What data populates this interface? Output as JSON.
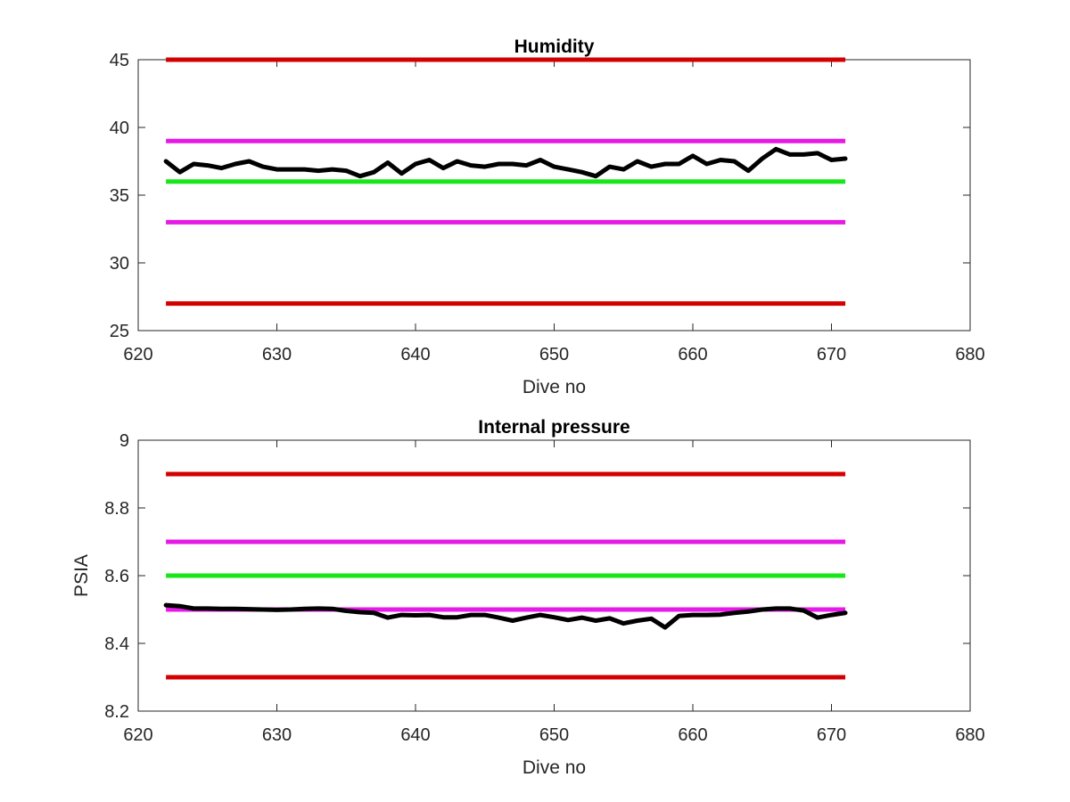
{
  "chart_data": [
    {
      "type": "line",
      "title": "Humidity",
      "xlabel": "Dive no",
      "ylabel": "",
      "xlim": [
        620,
        680
      ],
      "ylim": [
        25,
        45
      ],
      "xticks": [
        620,
        630,
        640,
        650,
        660,
        670,
        680
      ],
      "yticks": [
        25,
        30,
        35,
        40,
        45
      ],
      "x_tick_labels": [
        "620",
        "630",
        "640",
        "650",
        "660",
        "670",
        "680"
      ],
      "y_tick_labels": [
        "25",
        "30",
        "35",
        "40",
        "45"
      ],
      "grid": false,
      "reference_lines": [
        {
          "y": 45,
          "x_range": [
            622,
            671
          ],
          "color": "#d40000"
        },
        {
          "y": 39,
          "x_range": [
            622,
            671
          ],
          "color": "#e619e6"
        },
        {
          "y": 36,
          "x_range": [
            622,
            671
          ],
          "color": "#19e619"
        },
        {
          "y": 33,
          "x_range": [
            622,
            671
          ],
          "color": "#e619e6"
        },
        {
          "y": 27,
          "x_range": [
            622,
            671
          ],
          "color": "#d40000"
        }
      ],
      "series": [
        {
          "color": "#000000",
          "x": [
            622,
            623,
            624,
            625,
            626,
            627,
            628,
            629,
            630,
            631,
            632,
            633,
            634,
            635,
            636,
            637,
            638,
            639,
            640,
            641,
            642,
            643,
            644,
            645,
            646,
            647,
            648,
            649,
            650,
            651,
            652,
            653,
            654,
            655,
            656,
            657,
            658,
            659,
            660,
            661,
            662,
            663,
            664,
            665,
            666,
            667,
            668,
            669,
            670,
            671
          ],
          "y": [
            37.5,
            36.7,
            37.3,
            37.2,
            37.0,
            37.3,
            37.5,
            37.1,
            36.9,
            36.9,
            36.9,
            36.8,
            36.9,
            36.8,
            36.4,
            36.7,
            37.4,
            36.6,
            37.3,
            37.6,
            37.0,
            37.5,
            37.2,
            37.1,
            37.3,
            37.3,
            37.2,
            37.6,
            37.1,
            36.9,
            36.7,
            36.4,
            37.1,
            36.9,
            37.5,
            37.1,
            37.3,
            37.3,
            37.9,
            37.3,
            37.6,
            37.5,
            36.8,
            37.7,
            38.4,
            38.0,
            38.0,
            38.1,
            37.6,
            37.7
          ]
        }
      ]
    },
    {
      "type": "line",
      "title": "Internal pressure",
      "xlabel": "Dive no",
      "ylabel": "PSIA",
      "xlim": [
        620,
        680
      ],
      "ylim": [
        8.2,
        9.0
      ],
      "xticks": [
        620,
        630,
        640,
        650,
        660,
        670,
        680
      ],
      "yticks": [
        8.2,
        8.4,
        8.6,
        8.8,
        9.0
      ],
      "x_tick_labels": [
        "620",
        "630",
        "640",
        "650",
        "660",
        "670",
        "680"
      ],
      "y_tick_labels": [
        "8.2",
        "8.4",
        "8.6",
        "8.8",
        "9"
      ],
      "grid": false,
      "reference_lines": [
        {
          "y": 8.9,
          "x_range": [
            622,
            671
          ],
          "color": "#d40000"
        },
        {
          "y": 8.7,
          "x_range": [
            622,
            671
          ],
          "color": "#e619e6"
        },
        {
          "y": 8.6,
          "x_range": [
            622,
            671
          ],
          "color": "#19e619"
        },
        {
          "y": 8.5,
          "x_range": [
            622,
            671
          ],
          "color": "#e619e6"
        },
        {
          "y": 8.3,
          "x_range": [
            622,
            671
          ],
          "color": "#d40000"
        }
      ],
      "series": [
        {
          "color": "#000000",
          "x": [
            622,
            623,
            624,
            625,
            626,
            627,
            628,
            629,
            630,
            631,
            632,
            633,
            634,
            635,
            636,
            637,
            638,
            639,
            640,
            641,
            642,
            643,
            644,
            645,
            646,
            647,
            648,
            649,
            650,
            651,
            652,
            653,
            654,
            655,
            656,
            657,
            658,
            659,
            660,
            661,
            662,
            663,
            664,
            665,
            666,
            667,
            668,
            669,
            670,
            671
          ],
          "y": [
            8.513,
            8.51,
            8.503,
            8.503,
            8.502,
            8.502,
            8.501,
            8.5,
            8.499,
            8.5,
            8.502,
            8.503,
            8.502,
            8.496,
            8.492,
            8.49,
            8.476,
            8.484,
            8.483,
            8.484,
            8.477,
            8.477,
            8.484,
            8.484,
            8.476,
            8.467,
            8.476,
            8.484,
            8.477,
            8.469,
            8.476,
            8.467,
            8.474,
            8.459,
            8.467,
            8.473,
            8.447,
            8.481,
            8.484,
            8.484,
            8.485,
            8.49,
            8.494,
            8.5,
            8.503,
            8.503,
            8.497,
            8.476,
            8.484,
            8.49
          ]
        }
      ]
    }
  ]
}
